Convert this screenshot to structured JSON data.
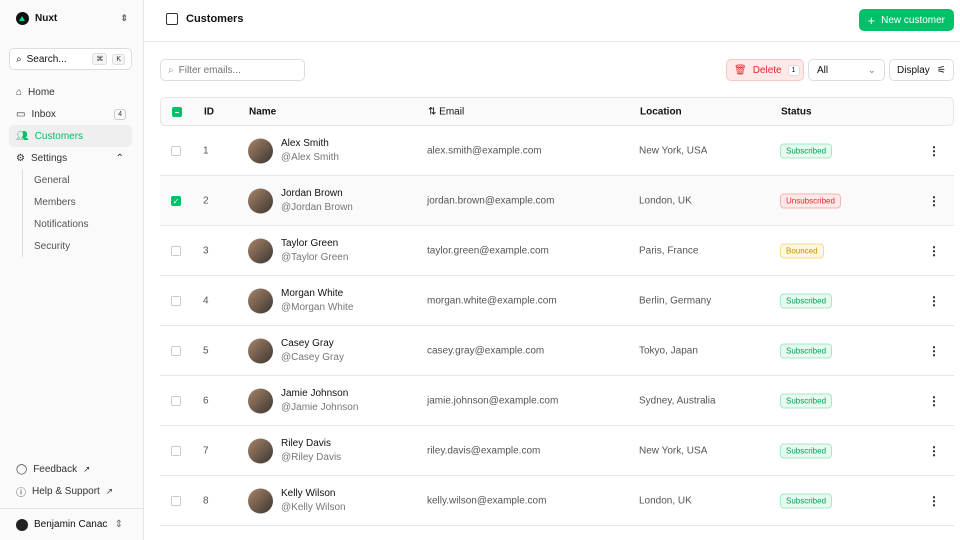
{
  "sidebar": {
    "team": "Nuxt",
    "search": "Search...",
    "kbd": [
      "⌘",
      "K"
    ],
    "items": [
      {
        "label": "Home"
      },
      {
        "label": "Inbox",
        "badge": "4"
      },
      {
        "label": "Customers"
      },
      {
        "label": "Settings"
      }
    ],
    "settings_sub": [
      "General",
      "Members",
      "Notifications",
      "Security"
    ],
    "bottom": [
      {
        "label": "Feedback"
      },
      {
        "label": "Help & Support"
      }
    ],
    "user": "Benjamin Canac"
  },
  "header": {
    "title": "Customers",
    "new_button": "New customer"
  },
  "toolbar": {
    "filter_placeholder": "Filter emails...",
    "delete_label": "Delete",
    "delete_count": "1",
    "status_filter": "All",
    "display_label": "Display"
  },
  "table": {
    "headers": [
      "ID",
      "Name",
      "Email",
      "Location",
      "Status"
    ],
    "rows": [
      {
        "id": "1",
        "name": "Alex Smith",
        "handle": "@Alex Smith",
        "email": "alex.smith@example.com",
        "location": "New York, USA",
        "status": "Subscribed",
        "checked": false
      },
      {
        "id": "2",
        "name": "Jordan Brown",
        "handle": "@Jordan Brown",
        "email": "jordan.brown@example.com",
        "location": "London, UK",
        "status": "Unsubscribed",
        "checked": true
      },
      {
        "id": "3",
        "name": "Taylor Green",
        "handle": "@Taylor Green",
        "email": "taylor.green@example.com",
        "location": "Paris, France",
        "status": "Bounced",
        "checked": false
      },
      {
        "id": "4",
        "name": "Morgan White",
        "handle": "@Morgan White",
        "email": "morgan.white@example.com",
        "location": "Berlin, Germany",
        "status": "Subscribed",
        "checked": false
      },
      {
        "id": "5",
        "name": "Casey Gray",
        "handle": "@Casey Gray",
        "email": "casey.gray@example.com",
        "location": "Tokyo, Japan",
        "status": "Subscribed",
        "checked": false
      },
      {
        "id": "6",
        "name": "Jamie Johnson",
        "handle": "@Jamie Johnson",
        "email": "jamie.johnson@example.com",
        "location": "Sydney, Australia",
        "status": "Subscribed",
        "checked": false
      },
      {
        "id": "7",
        "name": "Riley Davis",
        "handle": "@Riley Davis",
        "email": "riley.davis@example.com",
        "location": "New York, USA",
        "status": "Subscribed",
        "checked": false
      },
      {
        "id": "8",
        "name": "Kelly Wilson",
        "handle": "@Kelly Wilson",
        "email": "kelly.wilson@example.com",
        "location": "London, UK",
        "status": "Subscribed",
        "checked": false
      }
    ]
  },
  "colors": {
    "accent": "#00c16a",
    "danger": "#e5262b",
    "warning": "#d99a00"
  }
}
